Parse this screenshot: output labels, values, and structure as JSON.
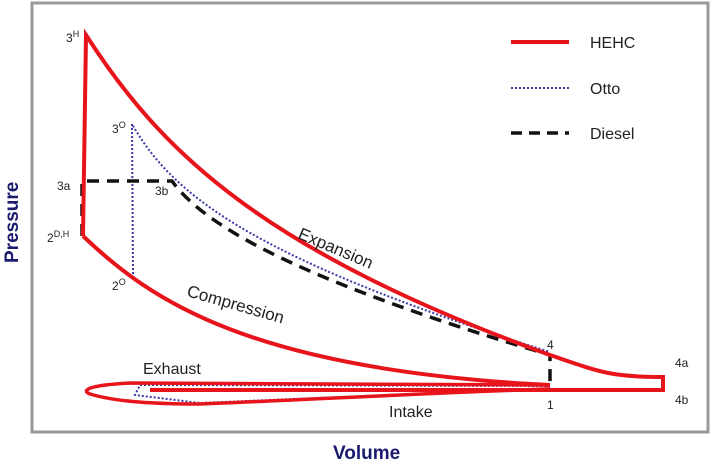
{
  "axes": {
    "x_label": "Volume",
    "y_label": "Pressure"
  },
  "legend": [
    {
      "label": "HEHC",
      "style": "solid",
      "color": "#e8141b"
    },
    {
      "label": "Otto",
      "style": "dotted",
      "color": "#3a3aa8"
    },
    {
      "label": "Diesel",
      "style": "dashed",
      "color": "#111111"
    }
  ],
  "points": {
    "p3H": "3",
    "p3H_sup": "H",
    "p3O": "3",
    "p3O_sup": "O",
    "p3a": "3a",
    "p3b": "3b",
    "p2DH": "2",
    "p2DH_sup": "D,H",
    "p2O": "2",
    "p2O_sup": "O",
    "p4": "4",
    "p1": "1",
    "p4a": "4a",
    "p4b": "4b"
  },
  "process_labels": {
    "expansion": "Expansion",
    "compression": "Compression",
    "exhaust": "Exhaust",
    "intake": "Intake"
  }
}
